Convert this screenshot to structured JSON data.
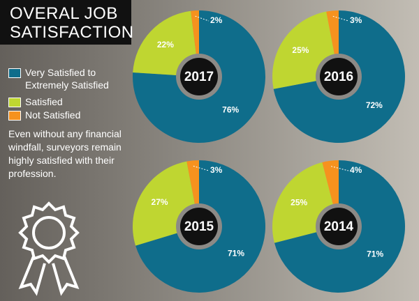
{
  "title": "OVERAL JOB SATISFACTION",
  "note": "Even without any financial windfall, surveyors remain highly satisfied with their profession.",
  "chart_data": [
    {
      "type": "donut",
      "title": "2017",
      "categories": [
        "Very Satisfied to Extremely Satisfied",
        "Satisfied",
        "Not Satisfied"
      ],
      "values": [
        76,
        22,
        2
      ],
      "value_labels": [
        "76%",
        "22%",
        "2%"
      ],
      "colors": [
        "#0f6d8b",
        "#bfd631",
        "#f6921e"
      ]
    },
    {
      "type": "donut",
      "title": "2016",
      "categories": [
        "Very Satisfied to Extremely Satisfied",
        "Satisfied",
        "Not Satisfied"
      ],
      "values": [
        72,
        25,
        3
      ],
      "value_labels": [
        "72%",
        "25%",
        "3%"
      ],
      "colors": [
        "#0f6d8b",
        "#bfd631",
        "#f6921e"
      ]
    },
    {
      "type": "donut",
      "title": "2015",
      "categories": [
        "Very Satisfied to Extremely Satisfied",
        "Satisfied",
        "Not Satisfied"
      ],
      "values": [
        71,
        27,
        3
      ],
      "value_labels": [
        "71%",
        "27%",
        "3%"
      ],
      "colors": [
        "#0f6d8b",
        "#bfd631",
        "#f6921e"
      ]
    },
    {
      "type": "donut",
      "title": "2014",
      "categories": [
        "Very Satisfied to Extremely Satisfied",
        "Satisfied",
        "Not Satisfied"
      ],
      "values": [
        71,
        25,
        4
      ],
      "value_labels": [
        "71%",
        "25%",
        "4%"
      ],
      "colors": [
        "#0f6d8b",
        "#bfd631",
        "#f6921e"
      ]
    }
  ]
}
